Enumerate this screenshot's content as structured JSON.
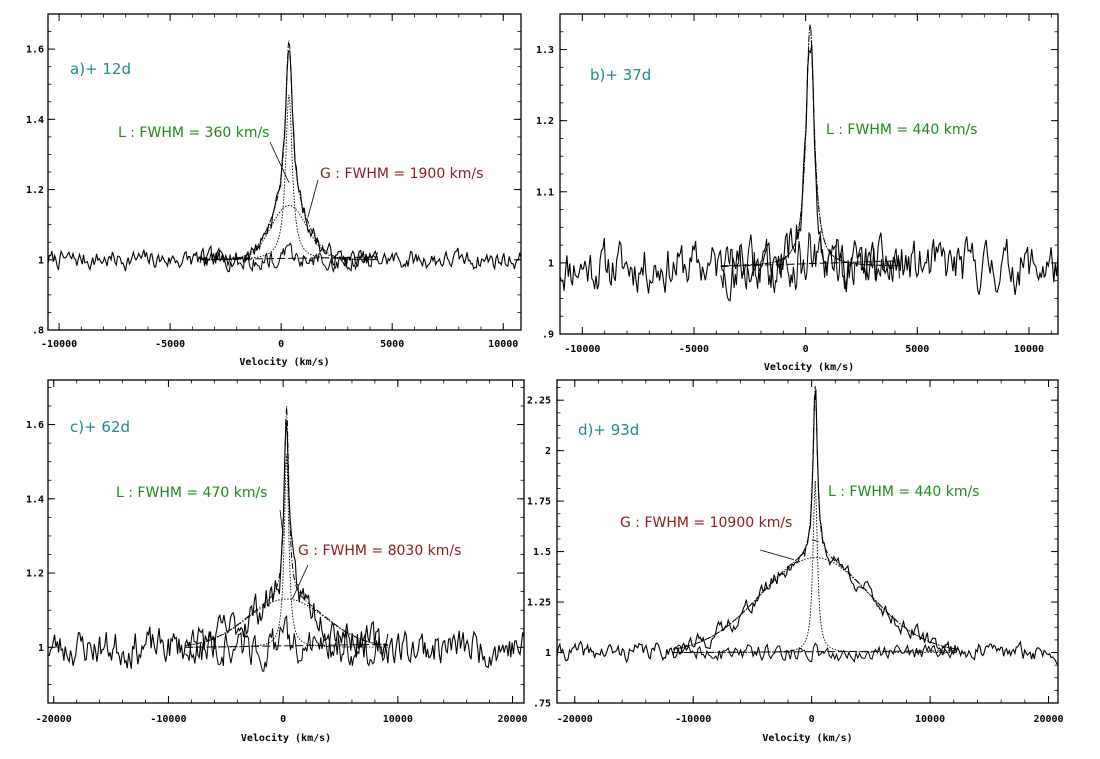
{
  "colors": {
    "panel_label": "#1a8a8a",
    "lorentz": "#1c8a1c",
    "gauss": "#8b1a1a",
    "frame": "#000000"
  },
  "chart_data": [
    {
      "type": "line",
      "label": "a)+ 12d",
      "xlabel": "Velocity (km/s)",
      "ylabel": "",
      "xlim": [
        -10500,
        10800
      ],
      "ylim": [
        0.8,
        1.7
      ],
      "xticks": [
        -10000,
        -5000,
        0,
        5000,
        10000
      ],
      "xtick_labels": [
        "-10000",
        "-5000",
        "0",
        "5000",
        "10000"
      ],
      "yticks": [
        0.8,
        1.0,
        1.2,
        1.4,
        1.6
      ],
      "ytick_labels": [
        ".8",
        "1",
        "1.2",
        "1.4",
        "1.6"
      ],
      "annotations": [
        {
          "text": "L : FWHM = 360 km/s",
          "kind": "lorentz",
          "at": [
            350,
            1.48
          ],
          "to": [
            350,
            1.22
          ]
        },
        {
          "text": "G : FWHM = 1900 km/s",
          "kind": "gauss",
          "at": [
            2600,
            1.22
          ],
          "to": [
            1200,
            1.12
          ]
        }
      ],
      "model": {
        "center": 350,
        "lorentz_fwhm": 360,
        "lorentz_amp": 0.47,
        "gauss_fwhm": 1900,
        "gauss_amp": 0.155,
        "baseline": 1.0,
        "noise": 0.022,
        "seed": 7
      }
    },
    {
      "type": "line",
      "label": "b)+ 37d",
      "xlabel": "Velocity (km/s)",
      "ylabel": "",
      "xlim": [
        -11000,
        11300
      ],
      "ylim": [
        0.9,
        1.35
      ],
      "xticks": [
        -10000,
        -5000,
        0,
        5000,
        10000
      ],
      "xtick_labels": [
        "-10000",
        "-5000",
        "0",
        "5000",
        "10000"
      ],
      "yticks": [
        0.9,
        1.0,
        1.1,
        1.2,
        1.3
      ],
      "ytick_labels": [
        ".9",
        "1",
        "1.1",
        "1.2",
        "1.3"
      ],
      "annotations": [
        {
          "text": "L : FWHM = 440 km/s",
          "kind": "lorentz",
          "at": [
            1200,
            1.205
          ],
          "to": [
            1200,
            1.205
          ]
        }
      ],
      "model": {
        "center": 200,
        "lorentz_fwhm": 440,
        "lorentz_amp": 0.34,
        "gauss_fwhm": 0,
        "gauss_amp": 0,
        "baseline": 0.995,
        "noise": 0.028,
        "seed": 11
      }
    },
    {
      "type": "line",
      "label": "c)+ 62d",
      "xlabel": "Velocity (km/s)",
      "ylabel": "",
      "xlim": [
        -20500,
        21000
      ],
      "ylim": [
        0.85,
        1.72
      ],
      "xticks": [
        -20000,
        -10000,
        0,
        10000,
        20000
      ],
      "xtick_labels": [
        "-20000",
        "-10000",
        "0",
        "10000",
        "20000"
      ],
      "yticks": [
        1.0,
        1.2,
        1.4,
        1.6
      ],
      "ytick_labels": [
        "1",
        "1.2",
        "1.4",
        "1.6"
      ],
      "annotations": [
        {
          "text": "L : FWHM = 470 km/s",
          "kind": "lorentz",
          "at": [
            -1800,
            1.38
          ],
          "to": [
            0,
            1.3
          ]
        },
        {
          "text": "G : FWHM = 8030 km/s",
          "kind": "gauss",
          "at": [
            1800,
            1.25
          ],
          "to": [
            800,
            1.13
          ]
        }
      ],
      "model": {
        "center": 300,
        "lorentz_fwhm": 470,
        "lorentz_amp": 0.52,
        "gauss_fwhm": 8030,
        "gauss_amp": 0.13,
        "baseline": 1.0,
        "noise": 0.04,
        "seed": 23
      }
    },
    {
      "type": "line",
      "label": "d)+ 93d",
      "xlabel": "Velocity (km/s)",
      "ylabel": "",
      "xlim": [
        -21500,
        20800
      ],
      "ylim": [
        0.75,
        2.35
      ],
      "xticks": [
        -20000,
        -10000,
        0,
        10000,
        20000
      ],
      "xtick_labels": [
        "-20000",
        "-10000",
        "0",
        "10000",
        "20000"
      ],
      "yticks": [
        0.75,
        1.0,
        1.25,
        1.5,
        1.75,
        2.0,
        2.25
      ],
      "ytick_labels": [
        ".75",
        "1",
        "1.25",
        "1.5",
        "1.75",
        "2",
        "2.25"
      ],
      "annotations": [
        {
          "text": "L : FWHM = 440 km/s",
          "kind": "lorentz",
          "at": [
            1200,
            1.8
          ],
          "to": [
            600,
            1.55
          ]
        },
        {
          "text": "G : FWHM = 10900 km/s",
          "kind": "gauss",
          "at": [
            -3000,
            1.55
          ],
          "to": [
            -1500,
            1.46
          ]
        }
      ],
      "model": {
        "center": 300,
        "lorentz_fwhm": 440,
        "lorentz_amp": 0.85,
        "gauss_fwhm": 10900,
        "gauss_amp": 0.47,
        "baseline": 1.0,
        "noise": 0.035,
        "seed": 41
      }
    }
  ]
}
